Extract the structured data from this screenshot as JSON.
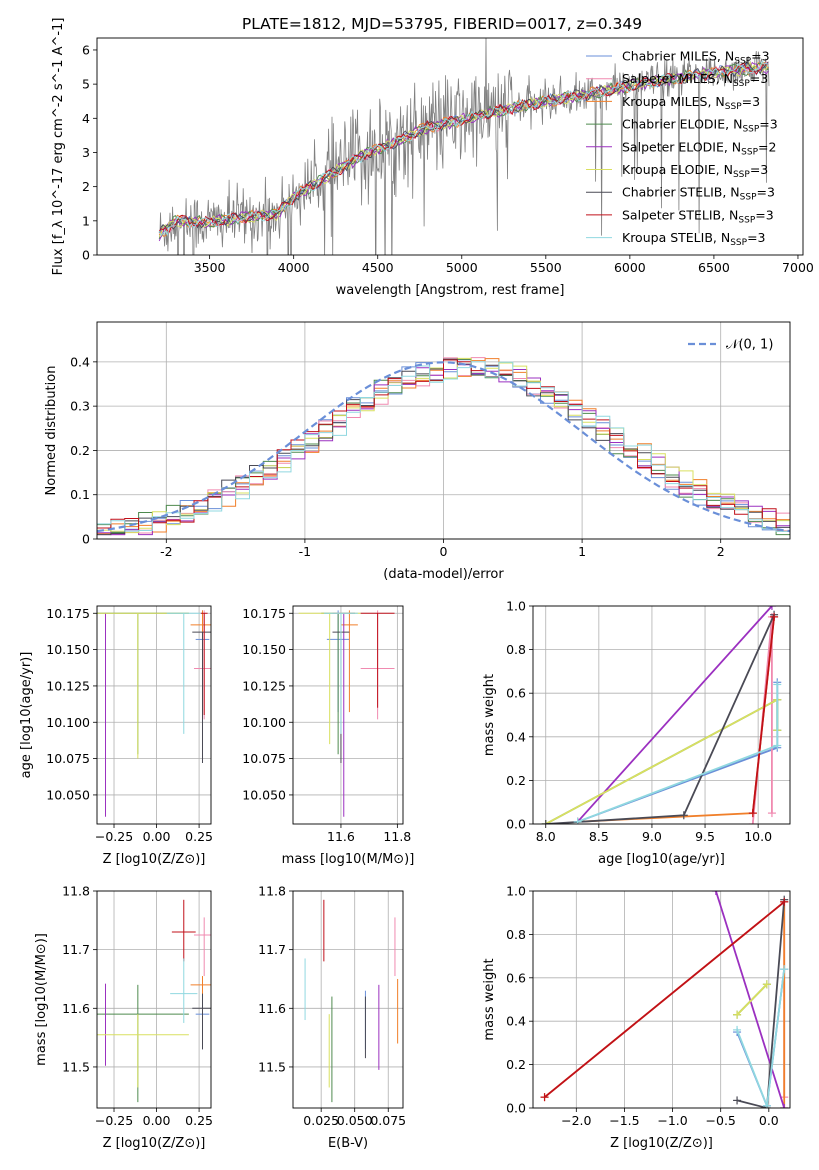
{
  "figure_title": "PLATE=1812, MJD=53795, FIBERID=0017, z=0.349",
  "models": [
    {
      "name": "Chabrier MILES",
      "n": "3",
      "color": "#6a8fd8"
    },
    {
      "name": "Salpeter MILES",
      "n": "3",
      "color": "#f08ab0"
    },
    {
      "name": "Kroupa MILES",
      "n": "3",
      "color": "#f07f2a"
    },
    {
      "name": "Chabrier ELODIE",
      "n": "3",
      "color": "#4e8a4e"
    },
    {
      "name": "Salpeter ELODIE",
      "n": "2",
      "color": "#9b30c0"
    },
    {
      "name": "Kroupa ELODIE",
      "n": "3",
      "color": "#d9e060"
    },
    {
      "name": "Chabrier STELIB",
      "n": "3",
      "color": "#4a4a55"
    },
    {
      "name": "Salpeter STELIB",
      "n": "3",
      "color": "#c0101a"
    },
    {
      "name": "Kroupa STELIB",
      "n": "3",
      "color": "#90d8e0"
    }
  ],
  "legend_prefix_sub": "SSP",
  "legend_n_prefix": "N",
  "chart_data": [
    {
      "id": "spectrum",
      "type": "line",
      "xlabel": "wavelength [Angstrom, rest frame]",
      "ylabel": "Flux [f_λ 10^-17 erg cm^-2 s^-1 A^-1]",
      "xlim": [
        2830,
        7030
      ],
      "ylim": [
        0,
        6.35
      ],
      "xticks": [
        3500,
        4000,
        4500,
        5000,
        5500,
        6000,
        6500,
        7000
      ],
      "yticks": [
        0,
        1,
        2,
        3,
        4,
        5,
        6
      ],
      "data_color": "#808080",
      "x_range": [
        3200,
        6830
      ],
      "continuum": [
        [
          3200,
          0.6
        ],
        [
          3300,
          1.0
        ],
        [
          3500,
          0.95
        ],
        [
          3700,
          1.1
        ],
        [
          3900,
          1.2
        ],
        [
          4000,
          1.7
        ],
        [
          4200,
          2.3
        ],
        [
          4400,
          2.9
        ],
        [
          4600,
          3.3
        ],
        [
          4800,
          3.75
        ],
        [
          5000,
          3.95
        ],
        [
          5200,
          4.2
        ],
        [
          5500,
          4.5
        ],
        [
          5800,
          4.75
        ],
        [
          6000,
          4.95
        ],
        [
          6300,
          5.2
        ],
        [
          6600,
          5.4
        ],
        [
          6830,
          5.5
        ]
      ],
      "grid": false,
      "legend_position": "top-right"
    },
    {
      "id": "residuals",
      "type": "line",
      "xlabel": "(data-model)/error",
      "ylabel": "Normed distribution",
      "xlim": [
        -2.5,
        2.5
      ],
      "ylim": [
        0,
        0.49
      ],
      "xticks": [
        -2,
        -1,
        0,
        1,
        2
      ],
      "yticks": [
        0.0,
        0.1,
        0.2,
        0.3,
        0.4
      ],
      "gaussian_label": "𝒩(0, 1)",
      "gaussian_color": "#6a8fd8",
      "grid": true,
      "legend_position": "top-right"
    },
    {
      "id": "age_vs_Z",
      "type": "scatter",
      "xlabel": "Z [log10(Z/Z⊙)]",
      "ylabel": "age [log10(age/yr)]",
      "xlim": [
        -0.35,
        0.32
      ],
      "ylim": [
        10.03,
        10.18
      ],
      "xticks": [
        -0.25,
        0.0,
        0.25
      ],
      "xticklabels": [
        "−0.25",
        "0.00",
        "0.25"
      ],
      "yticks": [
        10.05,
        10.075,
        10.1,
        10.125,
        10.15,
        10.175
      ],
      "yticklabels": [
        "10.050",
        "10.075",
        "10.100",
        "10.125",
        "10.150",
        "10.175"
      ],
      "grid": true,
      "points": [
        {
          "model": 0,
          "x": 0.27,
          "xe": 0.04,
          "y": 10.157,
          "ye": [
            0.05,
            0.02
          ]
        },
        {
          "model": 1,
          "x": 0.28,
          "xe": 0.06,
          "y": 10.137,
          "ye": [
            0.035,
            0.04
          ]
        },
        {
          "model": 2,
          "x": 0.27,
          "xe": 0.07,
          "y": 10.167,
          "ye": [
            0.06,
            0.01
          ]
        },
        {
          "model": 3,
          "x": -0.11,
          "xe": 0.3,
          "y": 10.175,
          "ye": [
            0.097,
            0.0
          ]
        },
        {
          "model": 4,
          "x": -0.3,
          "xe": 0.0,
          "y": 10.175,
          "ye": [
            0.14,
            0.0
          ]
        },
        {
          "model": 5,
          "x": -0.11,
          "xe": 0.3,
          "y": 10.175,
          "ye": [
            0.1,
            0.0
          ]
        },
        {
          "model": 6,
          "x": 0.27,
          "xe": 0.06,
          "y": 10.162,
          "ye": [
            0.09,
            0.0
          ]
        },
        {
          "model": 7,
          "x": 0.28,
          "xe": 0.02,
          "y": 10.175,
          "ye": [
            0.07,
            0.0
          ]
        },
        {
          "model": 8,
          "x": 0.16,
          "xe": 0.1,
          "y": 10.175,
          "ye": [
            0.083,
            0.0
          ]
        }
      ]
    },
    {
      "id": "age_vs_mass",
      "type": "scatter",
      "xlabel": "mass [log10(M/M⊙)]",
      "ylabel": "",
      "xlim": [
        11.43,
        11.82
      ],
      "ylim": [
        10.03,
        10.18
      ],
      "xticks": [
        11.6,
        11.8
      ],
      "xticklabels": [
        "11.6",
        "11.8"
      ],
      "yticks": [
        10.05,
        10.075,
        10.1,
        10.125,
        10.15,
        10.175
      ],
      "yticklabels": [
        "10.050",
        "10.075",
        "10.100",
        "10.125",
        "10.150",
        "10.175"
      ],
      "grid": true,
      "points": [
        {
          "model": 0,
          "x": 11.59,
          "xe": 0.04,
          "y": 10.157,
          "ye": [
            0.05,
            0.02
          ]
        },
        {
          "model": 1,
          "x": 11.73,
          "xe": 0.06,
          "y": 10.137,
          "ye": [
            0.035,
            0.04
          ]
        },
        {
          "model": 2,
          "x": 11.63,
          "xe": 0.03,
          "y": 10.167,
          "ye": [
            0.06,
            0.01
          ]
        },
        {
          "model": 3,
          "x": 11.59,
          "xe": 0.06,
          "y": 10.175,
          "ye": [
            0.097,
            0.0
          ]
        },
        {
          "model": 4,
          "x": 11.61,
          "xe": 0.04,
          "y": 10.175,
          "ye": [
            0.14,
            0.0
          ]
        },
        {
          "model": 5,
          "x": 11.56,
          "xe": 0.11,
          "y": 10.175,
          "ye": [
            0.09,
            0.0
          ]
        },
        {
          "model": 6,
          "x": 11.6,
          "xe": 0.03,
          "y": 10.162,
          "ye": [
            0.09,
            0.0
          ]
        },
        {
          "model": 7,
          "x": 11.73,
          "xe": 0.06,
          "y": 10.175,
          "ye": [
            0.065,
            0.0
          ]
        },
        {
          "model": 8,
          "x": 11.6,
          "xe": 0.06,
          "y": 10.175,
          "ye": [
            0.083,
            0.0
          ]
        }
      ]
    },
    {
      "id": "weight_vs_age",
      "type": "line",
      "xlabel": "age [log10(age/yr)]",
      "ylabel": "mass weight",
      "xlim": [
        7.88,
        10.3
      ],
      "ylim": [
        0,
        1
      ],
      "xticks": [
        8.0,
        8.5,
        9.0,
        9.5,
        10.0
      ],
      "xticklabels": [
        "8.0",
        "8.5",
        "9.0",
        "9.5",
        "10.0"
      ],
      "yticks": [
        0.0,
        0.2,
        0.4,
        0.6,
        0.8,
        1.0
      ],
      "yticklabels": [
        "0.0",
        "0.2",
        "0.4",
        "0.6",
        "0.8",
        "1.0"
      ],
      "grid": true,
      "series": [
        {
          "model": 0,
          "x": [
            8.3,
            10.18,
            10.18
          ],
          "y": [
            0.01,
            0.35,
            0.65
          ]
        },
        {
          "model": 1,
          "x": [
            9.95,
            10.13,
            10.13
          ],
          "y": [
            0.0,
            0.95,
            0.05
          ]
        },
        {
          "model": 2,
          "x": [
            8.3,
            9.95,
            10.15
          ],
          "y": [
            0.01,
            0.05,
            0.95
          ]
        },
        {
          "model": 3,
          "x": [
            8.0,
            10.18,
            10.18
          ],
          "y": [
            0.0,
            0.57,
            0.43
          ]
        },
        {
          "model": 4,
          "x": [
            8.3,
            10.13
          ],
          "y": [
            0.01,
            1.0
          ]
        },
        {
          "model": 5,
          "x": [
            8.0,
            10.18,
            10.18
          ],
          "y": [
            0.0,
            0.57,
            0.43
          ]
        },
        {
          "model": 6,
          "x": [
            8.0,
            9.3,
            10.15
          ],
          "y": [
            0.0,
            0.04,
            0.96
          ]
        },
        {
          "model": 7,
          "x": [
            9.95,
            10.15
          ],
          "y": [
            0.05,
            0.95
          ]
        },
        {
          "model": 8,
          "x": [
            8.3,
            10.18,
            10.18
          ],
          "y": [
            0.01,
            0.36,
            0.64
          ]
        }
      ]
    },
    {
      "id": "mass_vs_Z",
      "type": "scatter",
      "xlabel": "Z [log10(Z/Z⊙)]",
      "ylabel": "mass [log10(M/M⊙)]",
      "xlim": [
        -0.35,
        0.32
      ],
      "ylim": [
        11.43,
        11.8
      ],
      "xticks": [
        -0.25,
        0.0,
        0.25
      ],
      "xticklabels": [
        "−0.25",
        "0.00",
        "0.25"
      ],
      "yticks": [
        11.5,
        11.6,
        11.7,
        11.8
      ],
      "yticklabels": [
        "11.5",
        "11.6",
        "11.7",
        "11.8"
      ],
      "grid": true,
      "points": [
        {
          "model": 0,
          "x": 0.27,
          "xe": 0.04,
          "y": 11.59,
          "ye": [
            0.06,
            0.04
          ]
        },
        {
          "model": 1,
          "x": 0.28,
          "xe": 0.06,
          "y": 11.725,
          "ye": [
            0.07,
            0.03
          ]
        },
        {
          "model": 2,
          "x": 0.27,
          "xe": 0.07,
          "y": 11.64,
          "ye": [
            0.1,
            0.015
          ]
        },
        {
          "model": 3,
          "x": -0.11,
          "xe": 0.3,
          "y": 11.59,
          "ye": [
            0.15,
            0.05
          ]
        },
        {
          "model": 4,
          "x": -0.3,
          "xe": 0.0,
          "y": 11.607,
          "ye": [
            0.105,
            0.035
          ]
        },
        {
          "model": 5,
          "x": -0.11,
          "xe": 0.3,
          "y": 11.555,
          "ye": [
            0.09,
            0.035
          ]
        },
        {
          "model": 6,
          "x": 0.27,
          "xe": 0.06,
          "y": 11.6,
          "ye": [
            0.07,
            0.025
          ]
        },
        {
          "model": 7,
          "x": 0.16,
          "xe": 0.07,
          "y": 11.73,
          "ye": [
            0.05,
            0.055
          ]
        },
        {
          "model": 8,
          "x": 0.16,
          "xe": 0.08,
          "y": 11.625,
          "ye": [
            0.05,
            0.06
          ]
        }
      ]
    },
    {
      "id": "mass_vs_EBV",
      "type": "scatter",
      "xlabel": "E(B-V)",
      "ylabel": "",
      "xlim": [
        0.004,
        0.086
      ],
      "ylim": [
        11.43,
        11.8
      ],
      "xticks": [
        0.025,
        0.05,
        0.075
      ],
      "xticklabels": [
        "0.025",
        "0.050",
        "0.075"
      ],
      "yticks": [
        11.5,
        11.6,
        11.7,
        11.8
      ],
      "yticklabels": [
        "11.5",
        "11.6",
        "11.7",
        "11.8"
      ],
      "grid": true,
      "points": [
        {
          "model": 0,
          "x": 0.058,
          "xe": 0.0,
          "y": 11.59,
          "ye": [
            0.06,
            0.04
          ]
        },
        {
          "model": 1,
          "x": 0.08,
          "xe": 0.0,
          "y": 11.725,
          "ye": [
            0.07,
            0.03
          ]
        },
        {
          "model": 2,
          "x": 0.082,
          "xe": 0.0,
          "y": 11.6,
          "ye": [
            0.06,
            0.05
          ]
        },
        {
          "model": 3,
          "x": 0.033,
          "xe": 0.0,
          "y": 11.59,
          "ye": [
            0.15,
            0.03
          ]
        },
        {
          "model": 4,
          "x": 0.068,
          "xe": 0.0,
          "y": 11.58,
          "ye": [
            0.085,
            0.06
          ]
        },
        {
          "model": 5,
          "x": 0.031,
          "xe": 0.0,
          "y": 11.525,
          "ye": [
            0.06,
            0.065
          ]
        },
        {
          "model": 6,
          "x": 0.058,
          "xe": 0.0,
          "y": 11.575,
          "ye": [
            0.06,
            0.045
          ]
        },
        {
          "model": 7,
          "x": 0.027,
          "xe": 0.0,
          "y": 11.73,
          "ye": [
            0.05,
            0.055
          ]
        },
        {
          "model": 8,
          "x": 0.013,
          "xe": 0.0,
          "y": 11.63,
          "ye": [
            0.05,
            0.055
          ]
        }
      ]
    },
    {
      "id": "weight_vs_Z",
      "type": "line",
      "xlabel": "Z [log10(Z/Z⊙)]",
      "ylabel": "mass weight",
      "xlim": [
        -2.45,
        0.22
      ],
      "ylim": [
        0,
        1
      ],
      "xticks": [
        -2.0,
        -1.5,
        -1.0,
        -0.5,
        0.0
      ],
      "xticklabels": [
        "−2.0",
        "−1.5",
        "−1.0",
        "−0.5",
        "0.0"
      ],
      "yticks": [
        0.0,
        0.2,
        0.4,
        0.6,
        0.8,
        1.0
      ],
      "yticklabels": [
        "0.0",
        "0.2",
        "0.4",
        "0.6",
        "0.8",
        "1.0"
      ],
      "grid": true,
      "series": [
        {
          "model": 0,
          "x": [
            -0.33,
            -0.02,
            0.16
          ],
          "y": [
            0.35,
            0.01,
            0.64
          ]
        },
        {
          "model": 1,
          "x": [
            0.16,
            0.16
          ],
          "y": [
            0.95,
            0.05
          ]
        },
        {
          "model": 2,
          "x": [
            -2.33,
            0.16,
            0.16
          ],
          "y": [
            0.05,
            0.95,
            0.0
          ]
        },
        {
          "model": 3,
          "x": [
            -0.33,
            -0.02
          ],
          "y": [
            0.43,
            0.57
          ]
        },
        {
          "model": 4,
          "x": [
            -0.55,
            0.16
          ],
          "y": [
            1.0,
            0.0
          ]
        },
        {
          "model": 5,
          "x": [
            -0.33,
            -0.02
          ],
          "y": [
            0.43,
            0.57
          ]
        },
        {
          "model": 6,
          "x": [
            -0.33,
            -0.02,
            0.16
          ],
          "y": [
            0.035,
            0.0,
            0.96
          ]
        },
        {
          "model": 7,
          "x": [
            -2.33,
            0.16
          ],
          "y": [
            0.05,
            0.95
          ]
        },
        {
          "model": 8,
          "x": [
            -0.33,
            -0.02,
            0.16
          ],
          "y": [
            0.36,
            0.01,
            0.64
          ]
        }
      ]
    }
  ]
}
